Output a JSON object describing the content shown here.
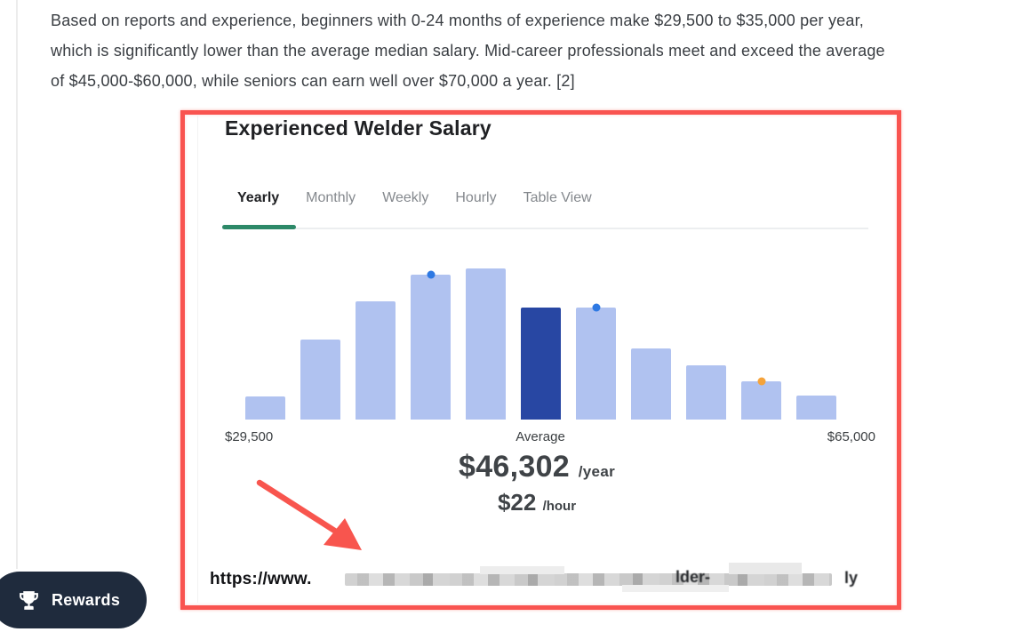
{
  "paragraph": {
    "lines": [
      "Based on reports and experience, beginners with 0-24 months of experience make $29,500 to $35,000 per year,",
      "which is significantly lower than the average median salary. Mid-career professionals meet and exceed the average",
      "of $45,000-$60,000, while seniors can earn well over $70,000 a year. [2]"
    ]
  },
  "widget": {
    "title": "Experienced Welder Salary",
    "tabs": [
      {
        "label": "Yearly",
        "active": true
      },
      {
        "label": "Monthly",
        "active": false
      },
      {
        "label": "Weekly",
        "active": false
      },
      {
        "label": "Hourly",
        "active": false
      },
      {
        "label": "Table View",
        "active": false
      }
    ],
    "source": {
      "url_prefix": "https://www.",
      "visible_fragment_1": "lder-",
      "visible_fragment_2": "ly"
    }
  },
  "chart_data": {
    "type": "bar",
    "title": "Experienced Welder Salary",
    "view": "Yearly",
    "x_min_label": "$29,500",
    "x_max_label": "$65,000",
    "average_label": "Average",
    "average_year_value": "$46,302",
    "average_year_unit": "/year",
    "average_hour_value": "$22",
    "average_hour_unit": "/hour",
    "values_relative": [
      15,
      53,
      78,
      96,
      100,
      74,
      74,
      47,
      36,
      25,
      16
    ],
    "highlighted_bar_index": 5,
    "markers": [
      {
        "bar_index": 3,
        "color": "blue"
      },
      {
        "bar_index": 6,
        "color": "blue"
      },
      {
        "bar_index": 9,
        "color": "orange"
      }
    ],
    "grid": false,
    "legend": false,
    "colors": {
      "bar": "#b0c2f0",
      "highlight": "#2847a3",
      "marker_blue": "#2e79e3",
      "marker_orange": "#f5a33b"
    }
  },
  "annotations": {
    "highlight_box_color": "#f95450",
    "arrow_color": "#f8554e"
  },
  "rewards": {
    "label": "Rewards"
  }
}
